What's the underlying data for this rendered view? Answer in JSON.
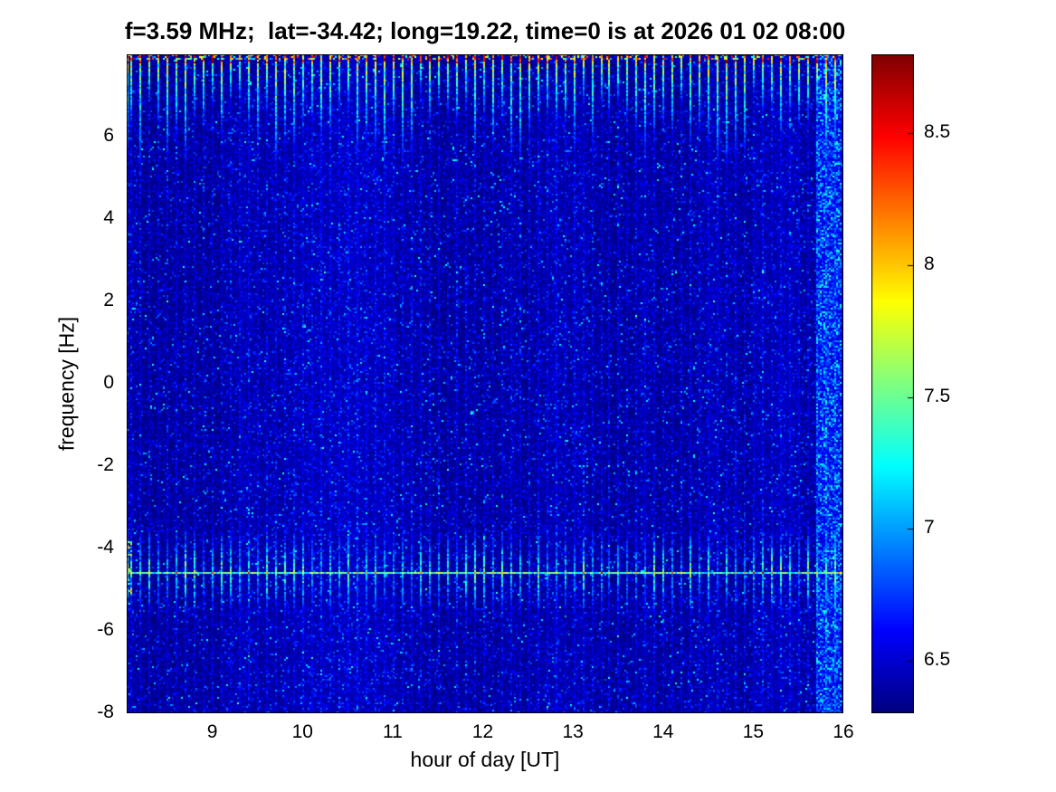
{
  "chart_data": {
    "type": "heatmap",
    "title": "f=3.59 MHz;  lat=-34.42; long=19.22, time=0 is at 2026 01 02 08:00",
    "xlabel": "hour of day [UT]",
    "ylabel": "frequency [Hz]",
    "xlim": [
      8.05,
      16
    ],
    "ylim": [
      -8,
      8
    ],
    "xticks": [
      9,
      10,
      11,
      12,
      13,
      14,
      15,
      16
    ],
    "yticks": [
      6,
      4,
      2,
      0,
      -2,
      -4,
      -6,
      -8
    ],
    "colorbar": {
      "colormap": "jet",
      "clim": [
        6.3,
        8.8
      ],
      "ticks": [
        8.5,
        8,
        7.5,
        7,
        6.5
      ]
    },
    "features": {
      "description": "Doppler spectrogram: dark-blue noise background (~6.3-6.7) with narrow vertical pulse streaks every 0.1 h; streak band near the top edge (5.2 to 8 Hz) with red peaks (~8.8) at the upper border; a lower streak band between -5.8 and -3.55 Hz; a continuous bright carrier line at -4.6 Hz (7.0-8.8); a brighter noisy column near 15.8 UT",
      "background_level_range": [
        6.3,
        6.8
      ],
      "streak_period_hours": 0.1,
      "upper_streak_band_hz": [
        5.2,
        8
      ],
      "lower_streak_band_hz": [
        -5.78,
        -3.55
      ],
      "carrier_line_hz": -4.6,
      "bright_column_hour_range": [
        15.7,
        16
      ],
      "peak_level": 8.8
    }
  }
}
